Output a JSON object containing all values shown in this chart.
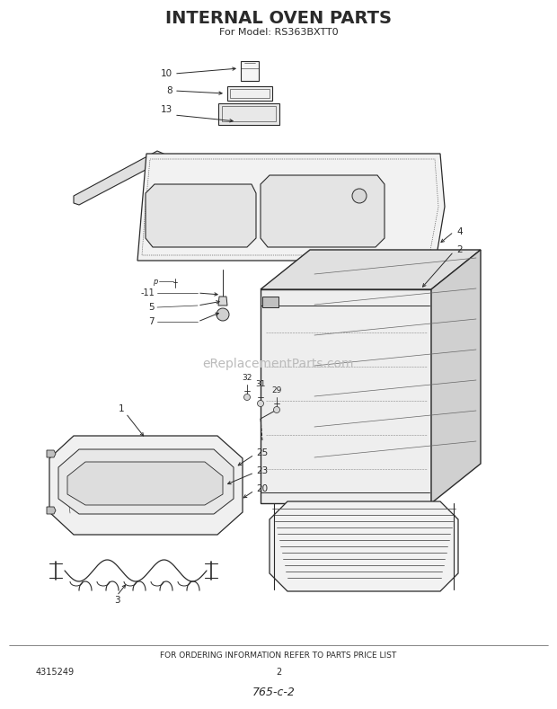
{
  "title": "INTERNAL OVEN PARTS",
  "subtitle": "For Model: RS363BXTT0",
  "footer_text": "FOR ORDERING INFORMATION REFER TO PARTS PRICE LIST",
  "part_number": "4315249",
  "page_number": "2",
  "handwritten": "765-c-2",
  "watermark": "eReplacementParts.com",
  "bg_color": "#ffffff",
  "line_color": "#2a2a2a",
  "text_color": "#2a2a2a",
  "watermark_color": "#bbbbbb"
}
